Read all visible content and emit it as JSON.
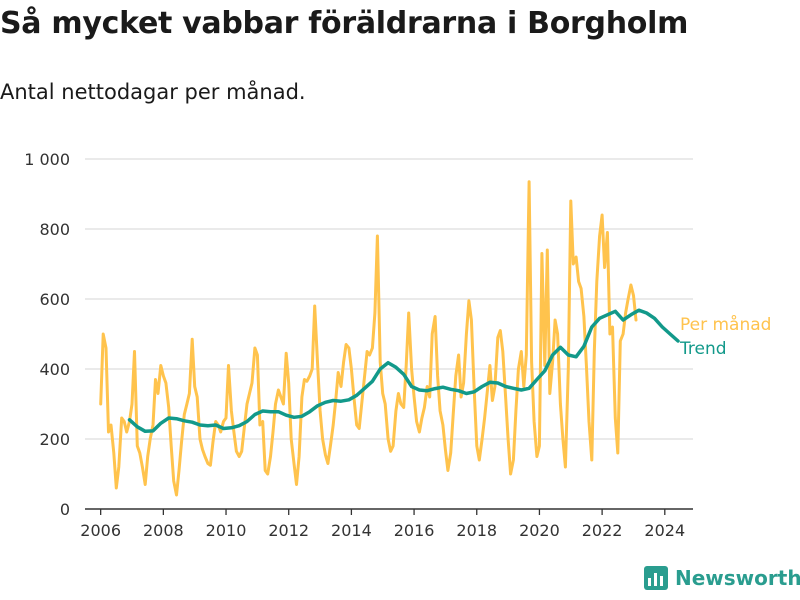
{
  "header": {
    "title": "Så mycket vabbar föräldrarna i Borgholm",
    "subtitle": "Antal nettodagar per månad."
  },
  "branding": {
    "name": "Newsworthy",
    "icon": "bar-chart-icon"
  },
  "colors": {
    "monthly": "#ffc34d",
    "trend": "#12998a",
    "grid": "#dddddd",
    "axis": "#333333"
  },
  "chart_data": {
    "type": "line",
    "title": "",
    "xlabel": "",
    "ylabel": "",
    "xlim": [
      2005.5,
      2024.9
    ],
    "ylim": [
      0,
      1000
    ],
    "x_ticks": [
      2006,
      2008,
      2010,
      2012,
      2014,
      2016,
      2018,
      2020,
      2022,
      2024
    ],
    "x_tick_labels": [
      "2006",
      "2008",
      "2010",
      "2012",
      "2014",
      "2016",
      "2018",
      "2020",
      "2022",
      "2024"
    ],
    "y_ticks": [
      0,
      200,
      400,
      600,
      800,
      1000
    ],
    "y_tick_labels": [
      "0",
      "200",
      "400",
      "600",
      "800",
      "1 000"
    ],
    "grid": true,
    "legend_position": "right",
    "series": [
      {
        "name": "Per månad",
        "points": [
          [
            2006.0,
            300
          ],
          [
            2006.08,
            500
          ],
          [
            2006.17,
            460
          ],
          [
            2006.25,
            220
          ],
          [
            2006.33,
            240
          ],
          [
            2006.42,
            160
          ],
          [
            2006.5,
            60
          ],
          [
            2006.58,
            120
          ],
          [
            2006.67,
            260
          ],
          [
            2006.75,
            250
          ],
          [
            2006.83,
            220
          ],
          [
            2006.92,
            250
          ],
          [
            2007.0,
            300
          ],
          [
            2007.08,
            450
          ],
          [
            2007.17,
            180
          ],
          [
            2007.25,
            160
          ],
          [
            2007.33,
            120
          ],
          [
            2007.42,
            70
          ],
          [
            2007.5,
            150
          ],
          [
            2007.58,
            200
          ],
          [
            2007.67,
            240
          ],
          [
            2007.75,
            370
          ],
          [
            2007.83,
            330
          ],
          [
            2007.92,
            410
          ],
          [
            2008.0,
            380
          ],
          [
            2008.08,
            360
          ],
          [
            2008.17,
            290
          ],
          [
            2008.25,
            180
          ],
          [
            2008.33,
            80
          ],
          [
            2008.42,
            40
          ],
          [
            2008.5,
            110
          ],
          [
            2008.58,
            190
          ],
          [
            2008.67,
            270
          ],
          [
            2008.75,
            300
          ],
          [
            2008.83,
            330
          ],
          [
            2008.92,
            485
          ],
          [
            2009.0,
            350
          ],
          [
            2009.08,
            320
          ],
          [
            2009.17,
            200
          ],
          [
            2009.25,
            170
          ],
          [
            2009.33,
            150
          ],
          [
            2009.42,
            130
          ],
          [
            2009.5,
            125
          ],
          [
            2009.58,
            190
          ],
          [
            2009.67,
            250
          ],
          [
            2009.75,
            240
          ],
          [
            2009.83,
            220
          ],
          [
            2009.92,
            250
          ],
          [
            2010.0,
            260
          ],
          [
            2010.08,
            410
          ],
          [
            2010.17,
            280
          ],
          [
            2010.25,
            220
          ],
          [
            2010.33,
            165
          ],
          [
            2010.42,
            150
          ],
          [
            2010.5,
            165
          ],
          [
            2010.58,
            230
          ],
          [
            2010.67,
            300
          ],
          [
            2010.75,
            330
          ],
          [
            2010.83,
            360
          ],
          [
            2010.92,
            460
          ],
          [
            2011.0,
            440
          ],
          [
            2011.08,
            240
          ],
          [
            2011.17,
            250
          ],
          [
            2011.25,
            110
          ],
          [
            2011.33,
            100
          ],
          [
            2011.42,
            150
          ],
          [
            2011.5,
            220
          ],
          [
            2011.58,
            300
          ],
          [
            2011.67,
            340
          ],
          [
            2011.75,
            320
          ],
          [
            2011.83,
            300
          ],
          [
            2011.92,
            445
          ],
          [
            2012.0,
            360
          ],
          [
            2012.08,
            200
          ],
          [
            2012.17,
            130
          ],
          [
            2012.25,
            70
          ],
          [
            2012.33,
            150
          ],
          [
            2012.42,
            320
          ],
          [
            2012.5,
            370
          ],
          [
            2012.58,
            365
          ],
          [
            2012.67,
            380
          ],
          [
            2012.75,
            400
          ],
          [
            2012.83,
            580
          ],
          [
            2012.92,
            420
          ],
          [
            2013.0,
            280
          ],
          [
            2013.08,
            200
          ],
          [
            2013.17,
            155
          ],
          [
            2013.25,
            130
          ],
          [
            2013.33,
            180
          ],
          [
            2013.42,
            240
          ],
          [
            2013.5,
            310
          ],
          [
            2013.58,
            390
          ],
          [
            2013.67,
            350
          ],
          [
            2013.75,
            420
          ],
          [
            2013.83,
            470
          ],
          [
            2013.92,
            460
          ],
          [
            2014.0,
            400
          ],
          [
            2014.08,
            320
          ],
          [
            2014.17,
            240
          ],
          [
            2014.25,
            230
          ],
          [
            2014.33,
            300
          ],
          [
            2014.42,
            380
          ],
          [
            2014.5,
            450
          ],
          [
            2014.58,
            440
          ],
          [
            2014.67,
            460
          ],
          [
            2014.75,
            560
          ],
          [
            2014.83,
            780
          ],
          [
            2014.92,
            420
          ],
          [
            2015.0,
            330
          ],
          [
            2015.08,
            300
          ],
          [
            2015.17,
            200
          ],
          [
            2015.25,
            165
          ],
          [
            2015.33,
            180
          ],
          [
            2015.42,
            280
          ],
          [
            2015.5,
            330
          ],
          [
            2015.58,
            300
          ],
          [
            2015.67,
            290
          ],
          [
            2015.75,
            410
          ],
          [
            2015.83,
            560
          ],
          [
            2015.92,
            400
          ],
          [
            2016.0,
            320
          ],
          [
            2016.08,
            250
          ],
          [
            2016.17,
            220
          ],
          [
            2016.25,
            260
          ],
          [
            2016.33,
            290
          ],
          [
            2016.42,
            350
          ],
          [
            2016.5,
            320
          ],
          [
            2016.58,
            500
          ],
          [
            2016.67,
            550
          ],
          [
            2016.75,
            380
          ],
          [
            2016.83,
            280
          ],
          [
            2016.92,
            240
          ],
          [
            2017.0,
            170
          ],
          [
            2017.08,
            110
          ],
          [
            2017.17,
            160
          ],
          [
            2017.25,
            270
          ],
          [
            2017.33,
            380
          ],
          [
            2017.42,
            440
          ],
          [
            2017.5,
            320
          ],
          [
            2017.58,
            360
          ],
          [
            2017.67,
            500
          ],
          [
            2017.75,
            595
          ],
          [
            2017.83,
            540
          ],
          [
            2017.92,
            340
          ],
          [
            2018.0,
            180
          ],
          [
            2018.08,
            140
          ],
          [
            2018.17,
            200
          ],
          [
            2018.25,
            260
          ],
          [
            2018.33,
            330
          ],
          [
            2018.42,
            410
          ],
          [
            2018.5,
            310
          ],
          [
            2018.58,
            350
          ],
          [
            2018.67,
            490
          ],
          [
            2018.75,
            510
          ],
          [
            2018.83,
            450
          ],
          [
            2018.92,
            320
          ],
          [
            2019.0,
            200
          ],
          [
            2019.08,
            100
          ],
          [
            2019.17,
            140
          ],
          [
            2019.25,
            280
          ],
          [
            2019.33,
            400
          ],
          [
            2019.42,
            450
          ],
          [
            2019.5,
            350
          ],
          [
            2019.58,
            440
          ],
          [
            2019.67,
            935
          ],
          [
            2019.75,
            420
          ],
          [
            2019.83,
            250
          ],
          [
            2019.92,
            150
          ],
          [
            2020.0,
            180
          ],
          [
            2020.08,
            730
          ],
          [
            2020.17,
            410
          ],
          [
            2020.25,
            740
          ],
          [
            2020.33,
            330
          ],
          [
            2020.42,
            420
          ],
          [
            2020.5,
            540
          ],
          [
            2020.58,
            500
          ],
          [
            2020.67,
            300
          ],
          [
            2020.75,
            200
          ],
          [
            2020.83,
            120
          ],
          [
            2020.92,
            400
          ],
          [
            2021.0,
            880
          ],
          [
            2021.08,
            700
          ],
          [
            2021.17,
            720
          ],
          [
            2021.25,
            650
          ],
          [
            2021.33,
            630
          ],
          [
            2021.42,
            550
          ],
          [
            2021.5,
            410
          ],
          [
            2021.58,
            250
          ],
          [
            2021.67,
            140
          ],
          [
            2021.75,
            450
          ],
          [
            2021.83,
            650
          ],
          [
            2021.92,
            780
          ],
          [
            2022.0,
            840
          ],
          [
            2022.08,
            690
          ],
          [
            2022.17,
            790
          ],
          [
            2022.25,
            500
          ],
          [
            2022.33,
            520
          ],
          [
            2022.42,
            260
          ],
          [
            2022.5,
            160
          ],
          [
            2022.58,
            480
          ],
          [
            2022.67,
            500
          ],
          [
            2022.75,
            560
          ],
          [
            2022.83,
            600
          ],
          [
            2022.92,
            640
          ],
          [
            2023.0,
            610
          ],
          [
            2023.08,
            540
          ]
        ]
      },
      {
        "name": "Trend",
        "points": [
          [
            2006.92,
            255
          ],
          [
            2007.17,
            235
          ],
          [
            2007.42,
            222
          ],
          [
            2007.67,
            223
          ],
          [
            2007.92,
            245
          ],
          [
            2008.17,
            260
          ],
          [
            2008.42,
            258
          ],
          [
            2008.67,
            252
          ],
          [
            2008.92,
            248
          ],
          [
            2009.17,
            240
          ],
          [
            2009.42,
            238
          ],
          [
            2009.67,
            240
          ],
          [
            2009.92,
            230
          ],
          [
            2010.17,
            232
          ],
          [
            2010.42,
            238
          ],
          [
            2010.67,
            250
          ],
          [
            2010.92,
            270
          ],
          [
            2011.17,
            280
          ],
          [
            2011.42,
            278
          ],
          [
            2011.67,
            278
          ],
          [
            2011.92,
            268
          ],
          [
            2012.17,
            262
          ],
          [
            2012.42,
            265
          ],
          [
            2012.67,
            278
          ],
          [
            2012.92,
            295
          ],
          [
            2013.17,
            305
          ],
          [
            2013.42,
            310
          ],
          [
            2013.67,
            308
          ],
          [
            2013.92,
            312
          ],
          [
            2014.17,
            325
          ],
          [
            2014.42,
            345
          ],
          [
            2014.67,
            365
          ],
          [
            2014.92,
            400
          ],
          [
            2015.17,
            418
          ],
          [
            2015.42,
            405
          ],
          [
            2015.67,
            385
          ],
          [
            2015.92,
            350
          ],
          [
            2016.17,
            340
          ],
          [
            2016.42,
            338
          ],
          [
            2016.67,
            344
          ],
          [
            2016.92,
            348
          ],
          [
            2017.17,
            342
          ],
          [
            2017.42,
            338
          ],
          [
            2017.67,
            330
          ],
          [
            2017.92,
            335
          ],
          [
            2018.17,
            350
          ],
          [
            2018.42,
            362
          ],
          [
            2018.67,
            360
          ],
          [
            2018.92,
            350
          ],
          [
            2019.17,
            345
          ],
          [
            2019.42,
            340
          ],
          [
            2019.67,
            345
          ],
          [
            2019.92,
            370
          ],
          [
            2020.17,
            395
          ],
          [
            2020.42,
            440
          ],
          [
            2020.67,
            462
          ],
          [
            2020.92,
            440
          ],
          [
            2021.17,
            435
          ],
          [
            2021.42,
            465
          ],
          [
            2021.67,
            520
          ],
          [
            2021.92,
            545
          ],
          [
            2022.17,
            555
          ],
          [
            2022.42,
            565
          ],
          [
            2022.67,
            540
          ],
          [
            2022.92,
            555
          ],
          [
            2023.17,
            568
          ],
          [
            2023.42,
            560
          ],
          [
            2023.67,
            545
          ],
          [
            2023.92,
            520
          ],
          [
            2024.17,
            500
          ],
          [
            2024.42,
            480
          ]
        ]
      }
    ]
  }
}
